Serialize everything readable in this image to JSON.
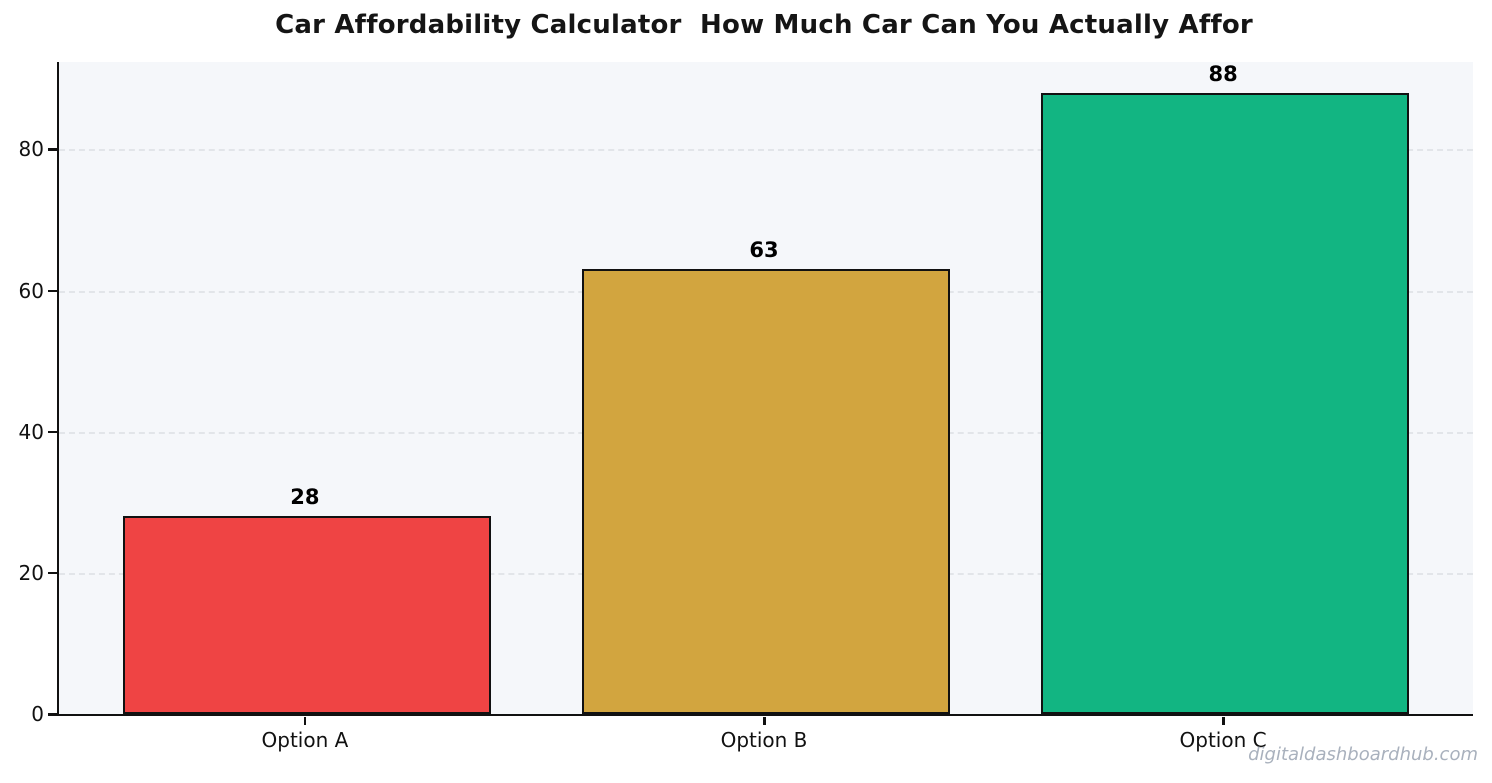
{
  "chart_data": {
    "type": "bar",
    "title": "Car Affordability Calculator  How Much Car Can You Actually Affor",
    "categories": [
      "Option A",
      "Option B",
      "Option C"
    ],
    "values": [
      28,
      63,
      88
    ],
    "value_labels": [
      "28",
      "63",
      "88"
    ],
    "bar_colors": [
      "#ef4444",
      "#d2a53f",
      "#12b582"
    ],
    "bar_edge_color": "#111111",
    "xlabel": "",
    "ylabel": "",
    "yticks": [
      0,
      20,
      40,
      60,
      80
    ],
    "ylim": [
      0,
      92.4
    ],
    "grid": "horizontal-dashed",
    "legend": "none",
    "plot_background": "#f5f7fa",
    "figure_background": "#ffffff"
  },
  "watermark": {
    "text": "digitaldashboardhub.com"
  }
}
